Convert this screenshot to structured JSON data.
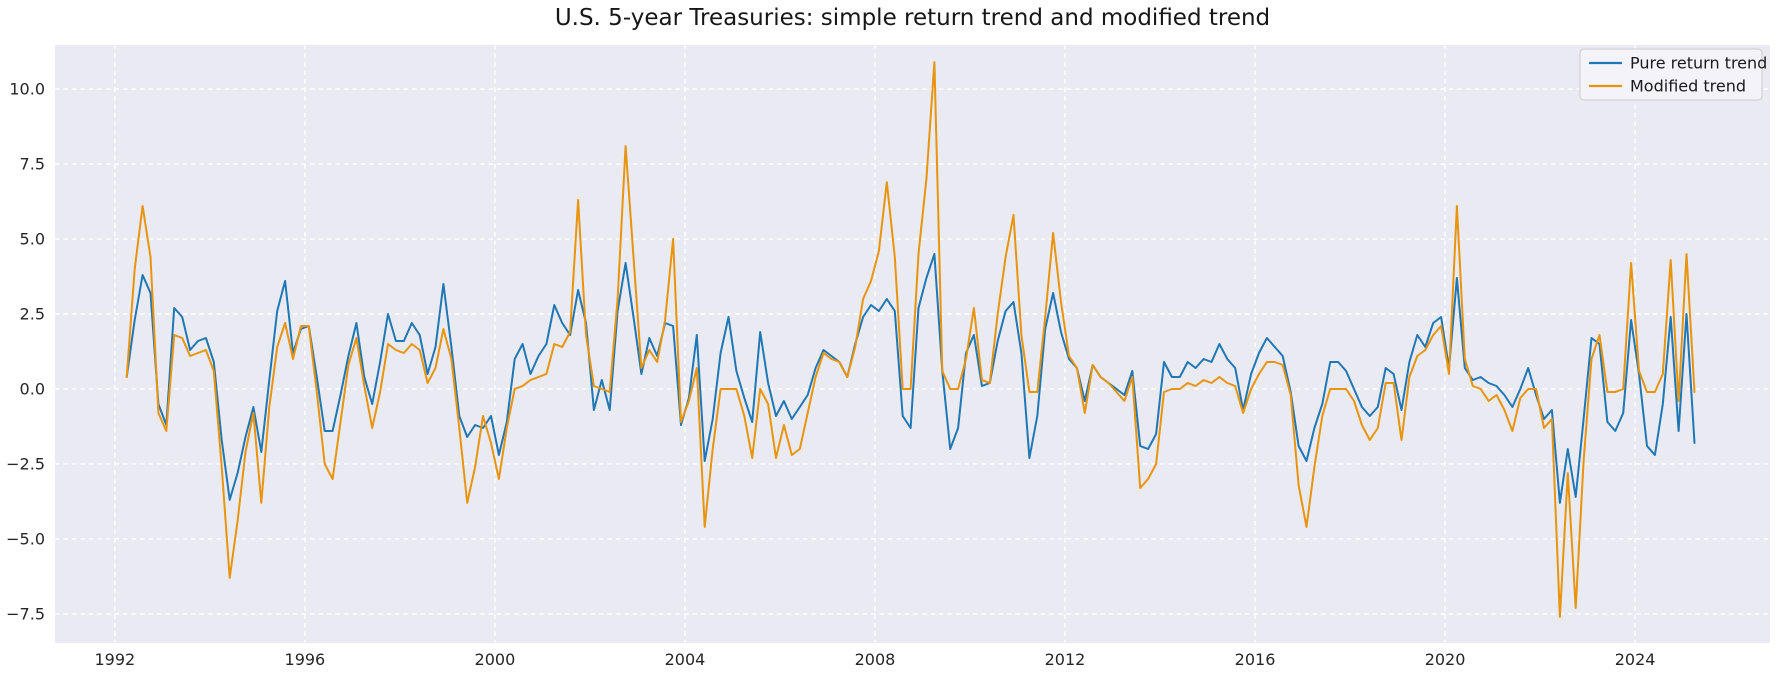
{
  "title": "U.S. 5-year Treasuries: simple return trend and modified trend",
  "legend": {
    "position": "upper right",
    "items": [
      {
        "label": "Pure return trend",
        "color": "#1f77b4"
      },
      {
        "label": "Modified trend",
        "color": "#e8940e"
      }
    ]
  },
  "colors": {
    "plot_background": "#eaeaf2",
    "grid": "#ffffff",
    "tick_text": "#262626",
    "legend_background": "#f4f4f9",
    "legend_border": "#cccccc"
  },
  "chart_data": {
    "type": "line",
    "title": "U.S. 5-year Treasuries: simple return trend and modified trend",
    "xlabel": "",
    "ylabel": "",
    "grid": "white dashed on #eaeaf2",
    "legend_position": "upper right",
    "x_ticks": [
      1992,
      1996,
      2000,
      2004,
      2008,
      2012,
      2016,
      2020,
      2024
    ],
    "x_tick_labels": [
      "1992",
      "1996",
      "2000",
      "2004",
      "2008",
      "2012",
      "2016",
      "2020",
      "2024"
    ],
    "y_ticks": [
      -7.5,
      -5.0,
      -2.5,
      0.0,
      2.5,
      5.0,
      7.5,
      10.0
    ],
    "y_tick_labels": [
      "−7.5",
      "−5.0",
      "−2.5",
      "0.0",
      "2.5",
      "5.0",
      "7.5",
      "10.0"
    ],
    "xlim": [
      1990.74,
      2026.84
    ],
    "ylim": [
      -8.47,
      11.47
    ],
    "x_start": 1992.25,
    "x_step": 0.1666667,
    "series": [
      {
        "name": "Pure return trend",
        "color": "#1f77b4",
        "values": [
          0.4,
          2.3,
          3.8,
          3.2,
          -0.5,
          -1.2,
          2.7,
          2.4,
          1.3,
          1.6,
          1.7,
          0.9,
          -1.7,
          -3.7,
          -2.8,
          -1.6,
          -0.6,
          -2.1,
          0.3,
          2.6,
          3.6,
          1.2,
          2.0,
          2.1,
          0.4,
          -1.4,
          -1.4,
          -0.2,
          1.1,
          2.2,
          0.4,
          -0.5,
          0.9,
          2.5,
          1.6,
          1.6,
          2.2,
          1.8,
          0.5,
          1.4,
          3.5,
          1.4,
          -0.9,
          -1.6,
          -1.2,
          -1.3,
          -0.9,
          -2.2,
          -1.1,
          1.0,
          1.5,
          0.5,
          1.1,
          1.5,
          2.8,
          2.2,
          1.8,
          3.3,
          2.2,
          -0.7,
          0.3,
          -0.7,
          2.6,
          4.2,
          2.4,
          0.5,
          1.7,
          1.1,
          2.2,
          2.1,
          -1.2,
          -0.3,
          1.8,
          -2.4,
          -1.0,
          1.2,
          2.4,
          0.6,
          -0.3,
          -1.1,
          1.9,
          0.2,
          -0.9,
          -0.4,
          -1.0,
          -0.6,
          -0.2,
          0.7,
          1.3,
          1.1,
          0.9,
          0.4,
          1.5,
          2.4,
          2.8,
          2.6,
          3.0,
          2.6,
          -0.9,
          -1.3,
          2.7,
          3.7,
          4.5,
          0.6,
          -2.0,
          -1.3,
          1.2,
          1.8,
          0.1,
          0.2,
          1.6,
          2.6,
          2.9,
          1.2,
          -2.3,
          -0.9,
          2.0,
          3.2,
          1.9,
          1.0,
          0.7,
          -0.4,
          0.8,
          0.4,
          0.2,
          0.0,
          -0.2,
          0.6,
          -1.9,
          -2.0,
          -1.5,
          0.9,
          0.4,
          0.4,
          0.9,
          0.7,
          1.0,
          0.9,
          1.5,
          1.0,
          0.7,
          -0.7,
          0.5,
          1.2,
          1.7,
          1.4,
          1.1,
          -0.1,
          -1.9,
          -2.4,
          -1.3,
          -0.5,
          0.9,
          0.9,
          0.6,
          0.0,
          -0.6,
          -0.9,
          -0.6,
          0.7,
          0.5,
          -0.7,
          0.9,
          1.8,
          1.4,
          2.2,
          2.4,
          0.7,
          3.7,
          0.7,
          0.3,
          0.4,
          0.2,
          0.1,
          -0.2,
          -0.6,
          0.0,
          0.7,
          -0.2,
          -1.0,
          -0.7,
          -3.8,
          -2.0,
          -3.6,
          -1.0,
          1.7,
          1.5,
          -1.1,
          -1.4,
          -0.8,
          2.3,
          0.5,
          -1.9,
          -2.2,
          -0.5,
          2.4,
          -1.4,
          2.5,
          -1.8
        ]
      },
      {
        "name": "Modified trend",
        "color": "#e8940e",
        "values": [
          0.4,
          4.0,
          6.1,
          4.4,
          -0.8,
          -1.4,
          1.8,
          1.7,
          1.1,
          1.2,
          1.3,
          0.6,
          -2.6,
          -6.3,
          -4.4,
          -2.1,
          -0.8,
          -3.8,
          -0.6,
          1.4,
          2.2,
          1.0,
          2.1,
          2.1,
          -0.1,
          -2.5,
          -3.0,
          -1.1,
          0.8,
          1.7,
          0.1,
          -1.3,
          -0.1,
          1.5,
          1.3,
          1.2,
          1.5,
          1.3,
          0.2,
          0.7,
          2.0,
          1.0,
          -1.3,
          -3.8,
          -2.6,
          -0.9,
          -1.8,
          -3.0,
          -1.3,
          0.0,
          0.1,
          0.3,
          0.4,
          0.5,
          1.5,
          1.4,
          1.9,
          6.3,
          1.8,
          0.1,
          0.0,
          -0.1,
          3.0,
          8.1,
          4.4,
          0.7,
          1.3,
          0.9,
          2.3,
          5.0,
          -1.1,
          -0.4,
          0.7,
          -4.6,
          -2.0,
          0.0,
          0.0,
          0.0,
          -0.9,
          -2.3,
          0.0,
          -0.5,
          -2.3,
          -1.2,
          -2.2,
          -2.0,
          -0.8,
          0.4,
          1.2,
          1.0,
          0.9,
          0.4,
          1.4,
          3.0,
          3.6,
          4.6,
          6.9,
          4.4,
          0.0,
          0.0,
          4.5,
          7.0,
          10.9,
          0.6,
          0.0,
          0.0,
          1.0,
          2.7,
          0.3,
          0.2,
          2.5,
          4.4,
          5.8,
          1.8,
          -0.1,
          -0.1,
          2.4,
          5.2,
          2.9,
          1.1,
          0.7,
          -0.8,
          0.8,
          0.4,
          0.2,
          -0.1,
          -0.4,
          0.4,
          -3.3,
          -3.0,
          -2.5,
          -0.1,
          0.0,
          0.0,
          0.2,
          0.1,
          0.3,
          0.2,
          0.4,
          0.2,
          0.1,
          -0.8,
          0.0,
          0.5,
          0.9,
          0.9,
          0.8,
          -0.2,
          -3.2,
          -4.6,
          -2.6,
          -0.9,
          0.0,
          0.0,
          0.0,
          -0.4,
          -1.2,
          -1.7,
          -1.3,
          0.2,
          0.2,
          -1.7,
          0.4,
          1.1,
          1.3,
          1.8,
          2.1,
          0.5,
          6.1,
          1.0,
          0.1,
          0.0,
          -0.4,
          -0.2,
          -0.7,
          -1.4,
          -0.3,
          0.0,
          0.0,
          -1.3,
          -1.0,
          -7.6,
          -2.8,
          -7.3,
          -2.4,
          1.0,
          1.8,
          -0.1,
          -0.1,
          0.0,
          4.2,
          0.6,
          -0.1,
          -0.1,
          0.5,
          4.3,
          -0.4,
          4.5,
          -0.1
        ]
      }
    ]
  }
}
